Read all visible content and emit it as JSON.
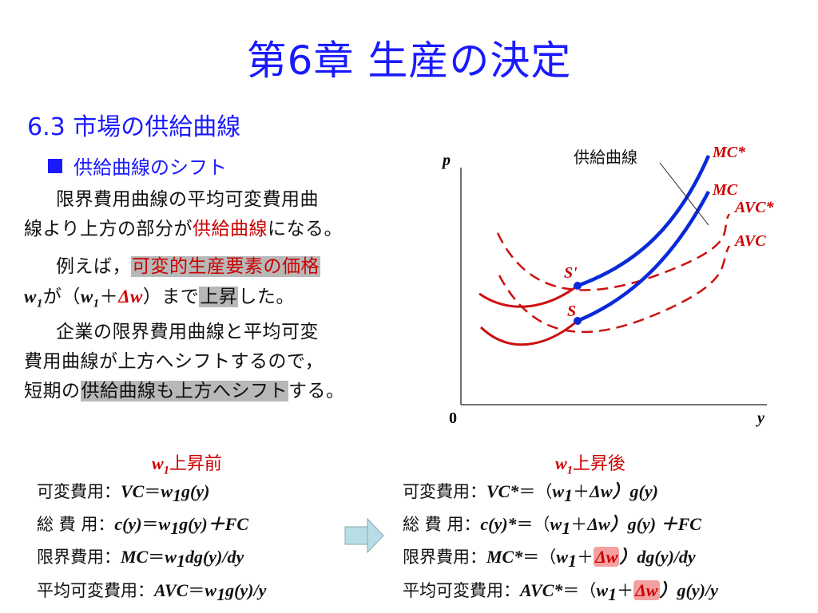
{
  "title": "第6章 生産の決定",
  "section": "6.3 市場の供給曲線",
  "bullet": "供給曲線のシフト",
  "para1": {
    "line1": "限界費用曲線の平均可変費用曲",
    "line2a": "線より上方の部分が",
    "line2b": "供給曲線",
    "line2c": "になる。"
  },
  "para2": {
    "line1a": "例えば，",
    "line1b": "可変的生産要素の価格",
    "w": "w",
    "sub1": "1",
    "ga": "が（",
    "delta_w": "Δw",
    "plus": "＋",
    "close_made": "）まで",
    "joushou": "上昇",
    "shita": "した。"
  },
  "para3": {
    "line1": "企業の限界費用曲線と平均可変",
    "line2": "費用曲線が上方へシフトするので，",
    "line3a": "短期の",
    "line3b": "供給曲線も上方へシフト",
    "line3c": "する。"
  },
  "graph": {
    "p_label": "p",
    "y_label": "y",
    "origin": "0",
    "supply_label": "供給曲線",
    "mc_star": "MC*",
    "mc": "MC",
    "avc_star": "AVC*",
    "avc": "AVC",
    "s_prime": "S'",
    "s": "S"
  },
  "colors": {
    "blue": "#1a1aff",
    "red": "#cc0000",
    "curve_blue": "#0a2ad8",
    "curve_red": "#cc1111"
  },
  "arrow_icon": "right-arrow-icon",
  "before": {
    "heading_w": "w",
    "heading_sub": "1",
    "heading_text": "上昇前",
    "rows": [
      {
        "label": "可変費用：",
        "formula": [
          "VC",
          "＝",
          "w",
          "1",
          "g(y)"
        ]
      },
      {
        "label": "総 費 用：",
        "formula": [
          "c(y)",
          "＝",
          "w",
          "1",
          "g(y)＋FC"
        ]
      },
      {
        "label": "限界費用：",
        "formula": [
          "MC",
          "＝",
          "w",
          "1",
          "dg(y)/dy"
        ]
      },
      {
        "label": "平均可変費用：",
        "formula": [
          "AVC",
          "＝",
          "w",
          "1",
          "g(y)/y"
        ]
      }
    ]
  },
  "after": {
    "heading_w": "w",
    "heading_sub": "1",
    "heading_text": "上昇後",
    "rows": [
      {
        "label": "可変費用：",
        "formula": [
          "VC*",
          "＝（",
          "w",
          "1",
          "＋",
          "Δw",
          "）g(y)"
        ]
      },
      {
        "label": "総 費 用：",
        "formula": [
          "c(y)*",
          "＝（",
          "w",
          "1",
          "＋",
          "Δw",
          "）g(y) ＋FC"
        ]
      },
      {
        "label": "限界費用：",
        "formula": [
          "MC*",
          "＝（",
          "w",
          "1",
          "＋",
          "Δw",
          "）dg(y)/dy"
        ]
      },
      {
        "label": "平均可変費用：",
        "formula": [
          "AVC*",
          "＝（",
          "w",
          "1",
          "＋",
          "Δw",
          "）g(y)/y"
        ]
      }
    ]
  }
}
